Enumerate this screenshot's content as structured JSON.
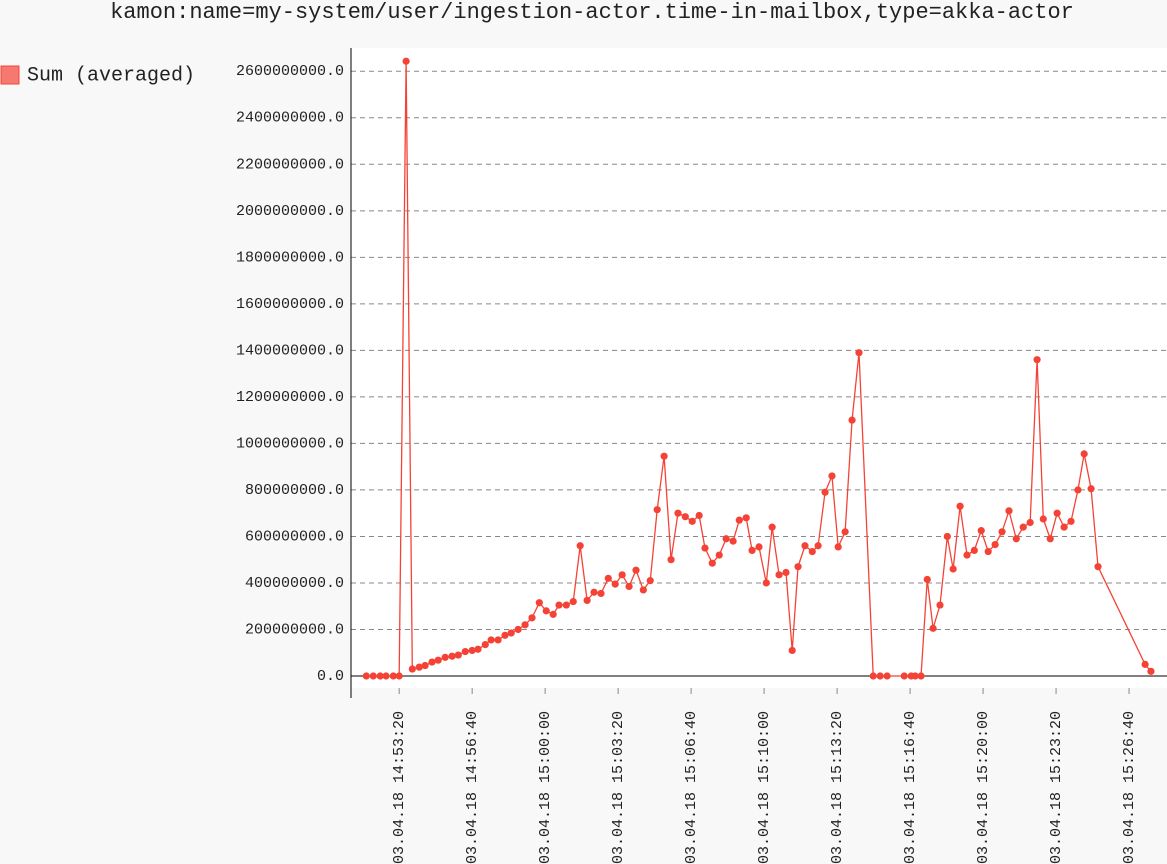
{
  "chart_data": {
    "type": "line",
    "title": "kamon:name=my-system/user/ingestion-actor.time-in-mailbox,type=akka-actor",
    "x": [
      "03.04.18 14:51:50",
      "03.04.18 14:52:09",
      "03.04.18 14:52:28",
      "03.04.18 14:52:44",
      "03.04.18 14:53:04",
      "03.04.18 14:53:20",
      "03.04.18 14:53:39",
      "03.04.18 14:53:56",
      "03.04.18 14:54:15",
      "03.04.18 14:54:31",
      "03.04.18 14:54:50",
      "03.04.18 14:55:07",
      "03.04.18 14:55:26",
      "03.04.18 14:55:45",
      "03.04.18 14:56:02",
      "03.04.18 14:56:21",
      "03.04.18 14:56:40",
      "03.04.18 14:56:56",
      "03.04.18 14:57:16",
      "03.04.18 14:57:32",
      "03.04.18 14:57:51",
      "03.04.18 14:58:10",
      "03.04.18 14:58:27",
      "03.04.18 14:58:46",
      "03.04.18 14:59:05",
      "03.04.18 14:59:24",
      "03.04.18 14:59:44",
      "03.04.18 15:00:03",
      "03.04.18 15:00:22",
      "03.04.18 15:00:38",
      "03.04.18 15:00:58",
      "03.04.18 15:01:17",
      "03.04.18 15:01:36",
      "03.04.18 15:01:55",
      "03.04.18 15:02:14",
      "03.04.18 15:02:33",
      "03.04.18 15:02:53",
      "03.04.18 15:03:12",
      "03.04.18 15:03:31",
      "03.04.18 15:03:50",
      "03.04.18 15:04:09",
      "03.04.18 15:04:29",
      "03.04.18 15:04:48",
      "03.04.18 15:05:07",
      "03.04.18 15:05:26",
      "03.04.18 15:05:45",
      "03.04.18 15:06:04",
      "03.04.18 15:06:24",
      "03.04.18 15:06:43",
      "03.04.18 15:07:02",
      "03.04.18 15:07:18",
      "03.04.18 15:07:38",
      "03.04.18 15:07:57",
      "03.04.18 15:08:16",
      "03.04.18 15:08:35",
      "03.04.18 15:08:52",
      "03.04.18 15:09:11",
      "03.04.18 15:09:27",
      "03.04.18 15:09:46",
      "03.04.18 15:10:06",
      "03.04.18 15:10:22",
      "03.04.18 15:10:41",
      "03.04.18 15:11:00",
      "03.04.18 15:11:17",
      "03.04.18 15:11:33",
      "03.04.18 15:11:52",
      "03.04.18 15:12:12",
      "03.04.18 15:12:28",
      "03.04.18 15:12:47",
      "03.04.18 15:13:06",
      "03.04.18 15:13:23",
      "03.04.18 15:13:42",
      "03.04.18 15:14:01",
      "03.04.18 15:14:20",
      "03.04.18 15:14:59",
      "03.04.18 15:15:18",
      "03.04.18 15:15:37",
      "03.04.18 15:16:24",
      "03.04.18 15:16:43",
      "03.04.18 15:16:54",
      "03.04.18 15:17:10",
      "03.04.18 15:17:27",
      "03.04.18 15:17:43",
      "03.04.18 15:18:02",
      "03.04.18 15:18:22",
      "03.04.18 15:18:38",
      "03.04.18 15:18:57",
      "03.04.18 15:19:16",
      "03.04.18 15:19:36",
      "03.04.18 15:19:55",
      "03.04.18 15:20:14",
      "03.04.18 15:20:33",
      "03.04.18 15:20:52",
      "03.04.18 15:21:11",
      "03.04.18 15:21:31",
      "03.04.18 15:21:50",
      "03.04.18 15:22:09",
      "03.04.18 15:22:28",
      "03.04.18 15:22:45",
      "03.04.18 15:23:04",
      "03.04.18 15:23:23",
      "03.04.18 15:23:42",
      "03.04.18 15:24:01",
      "03.04.18 15:24:20",
      "03.04.18 15:24:37",
      "03.04.18 15:24:56",
      "03.04.18 15:25:15",
      "03.04.18 15:27:24",
      "03.04.18 15:27:40"
    ],
    "series": [
      {
        "name": "Sum (averaged)",
        "color": "#f44336",
        "values": [
          0,
          0,
          0,
          0,
          0,
          0,
          2643000000,
          30000000,
          38000000,
          45000000,
          60000000,
          68000000,
          80000000,
          85000000,
          90000000,
          105000000,
          110000000,
          115000000,
          135000000,
          155000000,
          155000000,
          175000000,
          185000000,
          200000000,
          220000000,
          250000000,
          315000000,
          280000000,
          265000000,
          305000000,
          305000000,
          320000000,
          560000000,
          325000000,
          360000000,
          355000000,
          420000000,
          395000000,
          435000000,
          385000000,
          455000000,
          370000000,
          410000000,
          715000000,
          945000000,
          500000000,
          700000000,
          685000000,
          665000000,
          690000000,
          550000000,
          485000000,
          520000000,
          590000000,
          580000000,
          670000000,
          680000000,
          540000000,
          555000000,
          400000000,
          640000000,
          435000000,
          445000000,
          110000000,
          470000000,
          560000000,
          535000000,
          560000000,
          790000000,
          860000000,
          555000000,
          620000000,
          1100000000,
          1390000000,
          0,
          0,
          0,
          0,
          0,
          0,
          0,
          415000000,
          205000000,
          305000000,
          600000000,
          460000000,
          730000000,
          520000000,
          540000000,
          625000000,
          535000000,
          565000000,
          620000000,
          710000000,
          590000000,
          640000000,
          660000000,
          1360000000,
          675000000,
          590000000,
          700000000,
          640000000,
          665000000,
          800000000,
          955000000,
          805000000,
          470000000,
          50000000,
          20000000
        ]
      }
    ],
    "xlim": [
      "03.04.18 14:51:08",
      "03.04.18 15:28:24"
    ],
    "xticks": [
      "03.04.18 14:53:20",
      "03.04.18 14:56:40",
      "03.04.18 15:00:00",
      "03.04.18 15:03:20",
      "03.04.18 15:06:40",
      "03.04.18 15:10:00",
      "03.04.18 15:13:20",
      "03.04.18 15:16:40",
      "03.04.18 15:20:00",
      "03.04.18 15:23:20",
      "03.04.18 15:26:40"
    ],
    "ylim": [
      -51600000,
      2700000000
    ],
    "yticks": [
      {
        "value": 0,
        "label": "0.0"
      },
      {
        "value": 200000000,
        "label": "200000000.0"
      },
      {
        "value": 400000000,
        "label": "400000000.0"
      },
      {
        "value": 600000000,
        "label": "600000000.0"
      },
      {
        "value": 800000000,
        "label": "800000000.0"
      },
      {
        "value": 1000000000,
        "label": "1000000000.0"
      },
      {
        "value": 1200000000,
        "label": "1200000000.0"
      },
      {
        "value": 1400000000,
        "label": "1400000000.0"
      },
      {
        "value": 1600000000,
        "label": "1600000000.0"
      },
      {
        "value": 1800000000,
        "label": "1800000000.0"
      },
      {
        "value": 2000000000,
        "label": "2000000000.0"
      },
      {
        "value": 2200000000,
        "label": "2200000000.0"
      },
      {
        "value": 2400000000,
        "label": "2400000000.0"
      },
      {
        "value": 2600000000,
        "label": "2600000000.0"
      }
    ],
    "grid": true,
    "legend": "left"
  }
}
